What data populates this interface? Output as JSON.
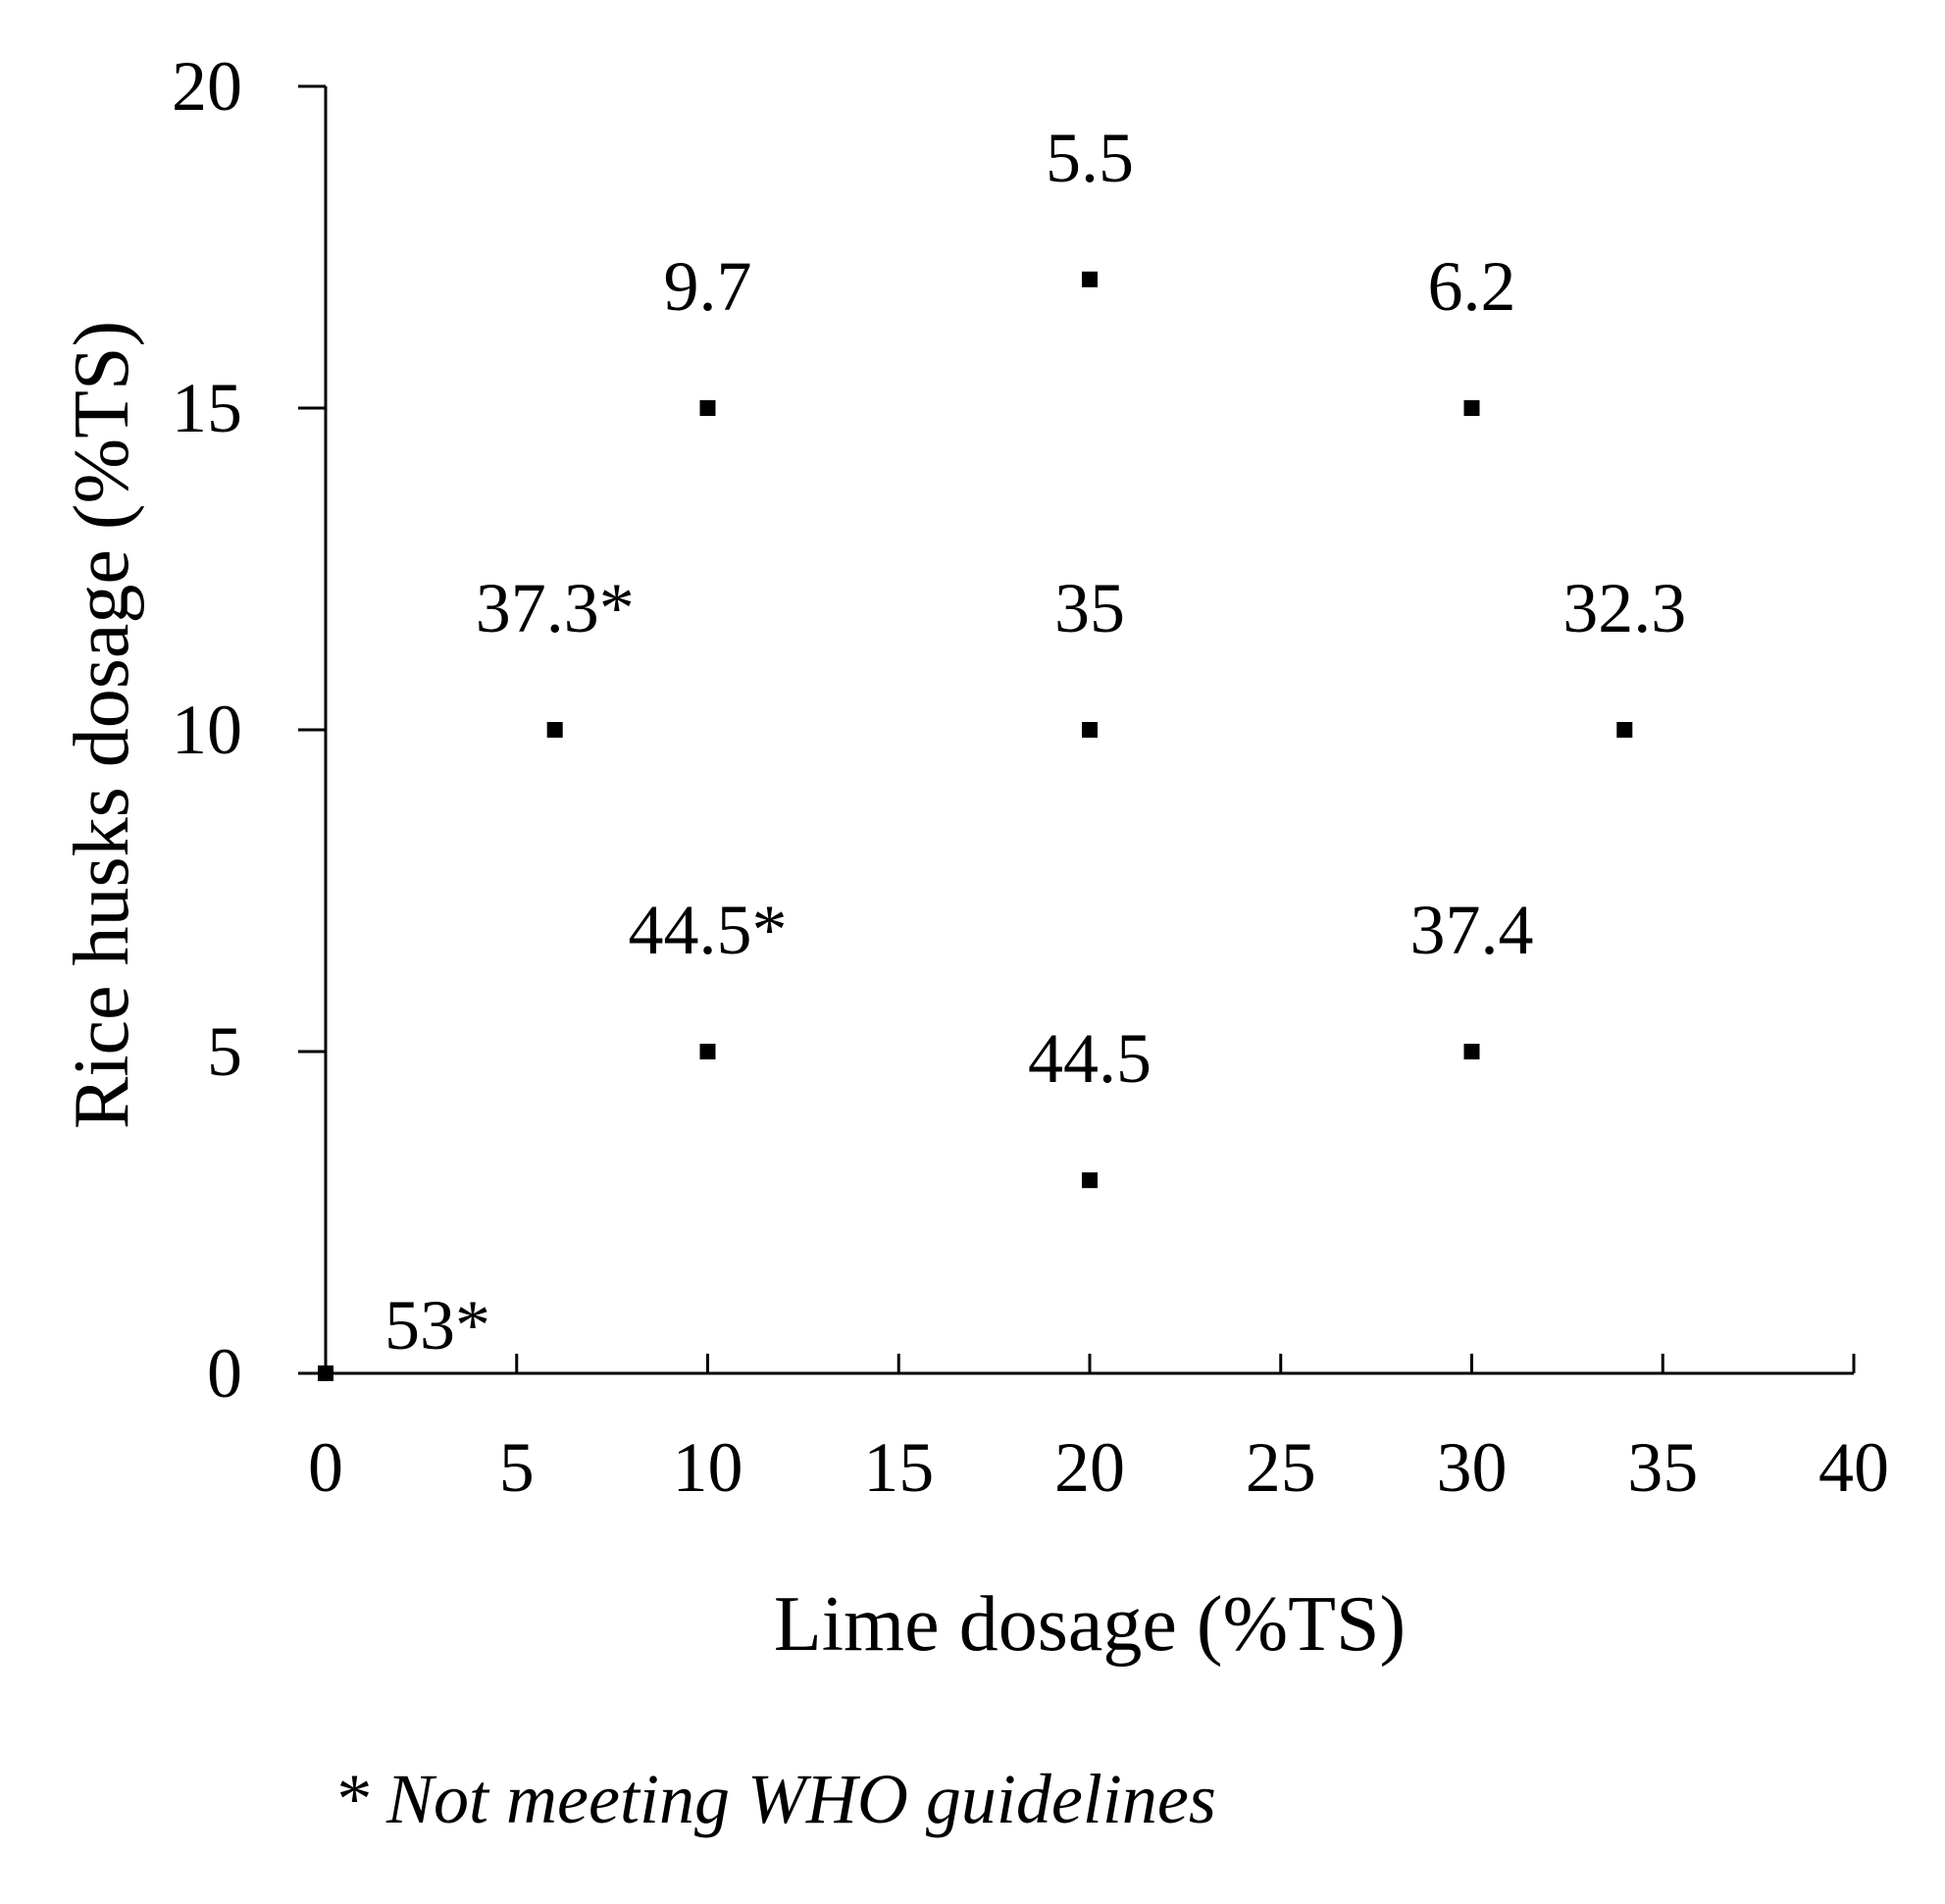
{
  "chart_data": {
    "type": "scatter",
    "title": "",
    "xlabel": "Lime dosage (%TS)",
    "ylabel": "Rice husks dosage (%TS)",
    "xlim": [
      0,
      40
    ],
    "ylim": [
      0,
      20
    ],
    "x_ticks": [
      0,
      5,
      10,
      15,
      20,
      25,
      30,
      35,
      40
    ],
    "y_ticks": [
      0,
      5,
      10,
      15,
      20
    ],
    "grid": false,
    "marker": "square",
    "marker_color": "#000000",
    "points": [
      {
        "x": 0,
        "y": 0,
        "label": "53*"
      },
      {
        "x": 6,
        "y": 10,
        "label": "37.3*"
      },
      {
        "x": 10,
        "y": 15,
        "label": "9.7"
      },
      {
        "x": 10,
        "y": 5,
        "label": "44.5*"
      },
      {
        "x": 20,
        "y": 17,
        "label": "5.5"
      },
      {
        "x": 20,
        "y": 10,
        "label": "35"
      },
      {
        "x": 20,
        "y": 3,
        "label": "44.5"
      },
      {
        "x": 30,
        "y": 15,
        "label": "6.2"
      },
      {
        "x": 30,
        "y": 5,
        "label": "37.4"
      },
      {
        "x": 34,
        "y": 10,
        "label": "32.3"
      }
    ],
    "footnote": "* Not meeting WHO guidelines"
  }
}
